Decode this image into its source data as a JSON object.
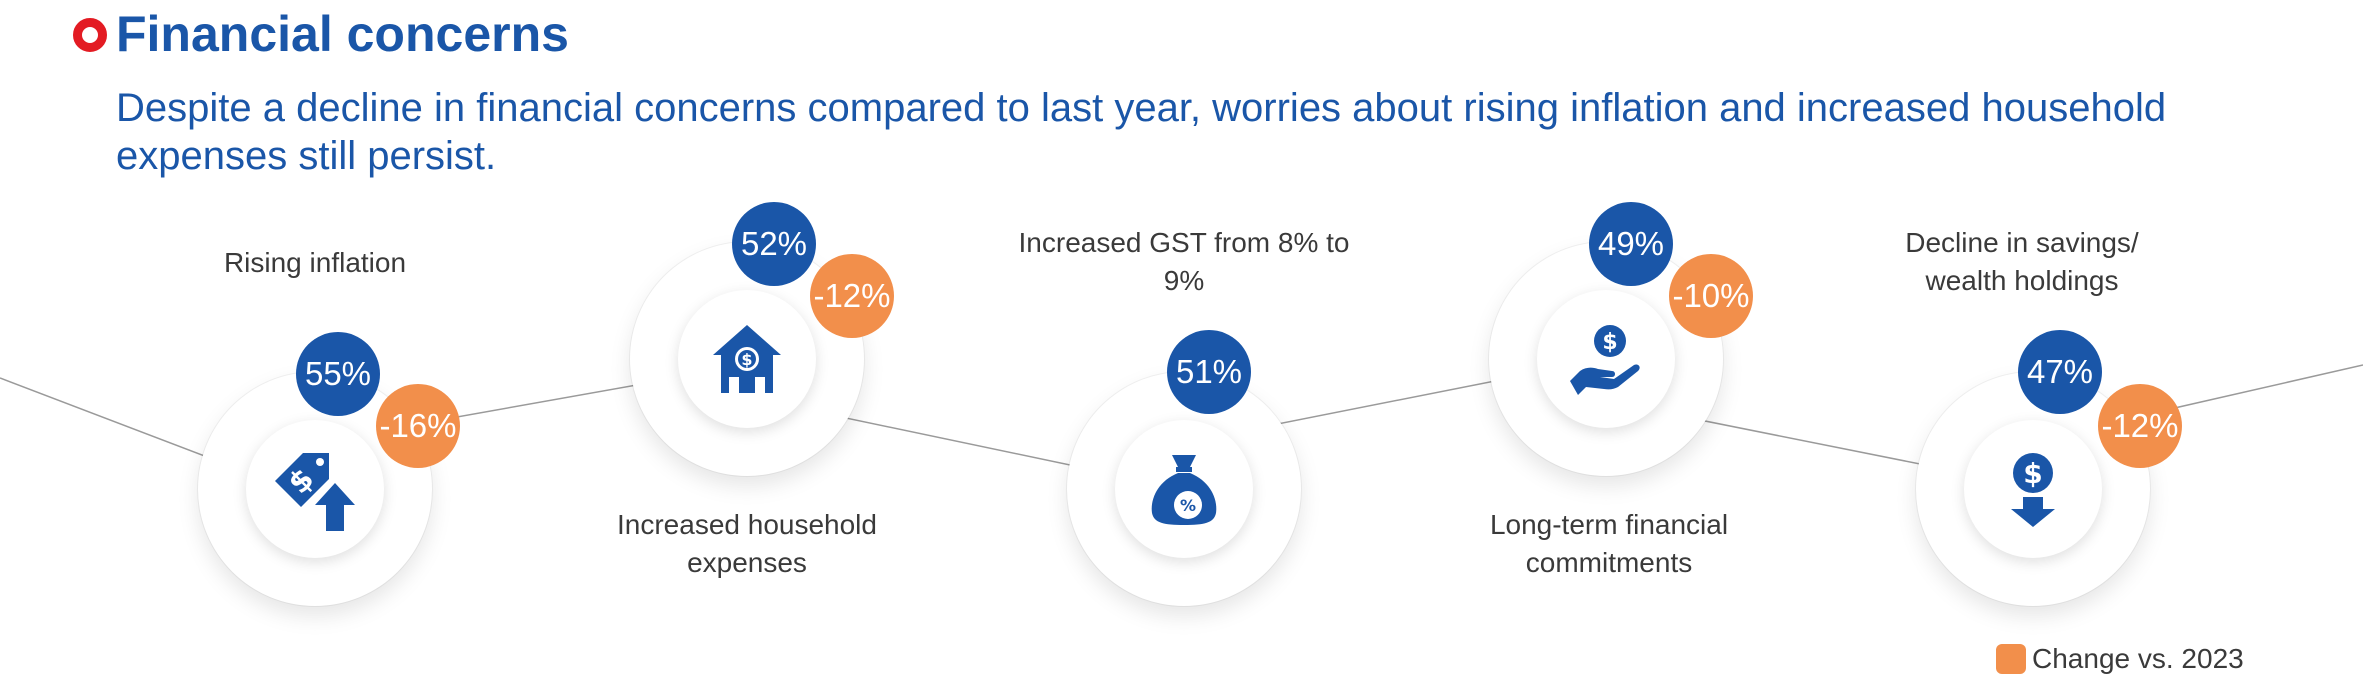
{
  "header": {
    "title": "Financial concerns",
    "subtitle": "Despite a decline in financial concerns compared to last year, worries about rising inflation and increased household expenses still persist."
  },
  "items": [
    {
      "label": "Rising inflation",
      "value": "55%",
      "change": "-16%",
      "icon": "price-tag-up-arrow-icon"
    },
    {
      "label": "Increased household expenses",
      "value": "52%",
      "change": "-12%",
      "icon": "house-dollar-icon"
    },
    {
      "label": "Increased GST from 8% to 9%",
      "value": "51%",
      "change": "",
      "icon": "money-bag-percent-icon"
    },
    {
      "label": "Long-term financial commitments",
      "value": "49%",
      "change": "-10%",
      "icon": "hand-holding-coin-icon"
    },
    {
      "label": "Decline in savings/ wealth holdings",
      "value": "47%",
      "change": "-12%",
      "icon": "coin-down-arrow-icon"
    }
  ],
  "legend": {
    "label": "Change vs. 2023",
    "color": "#f28f4b"
  },
  "colors": {
    "blue": "#1a56a8",
    "orange": "#f28f4b",
    "bullet": "#e31b23"
  }
}
